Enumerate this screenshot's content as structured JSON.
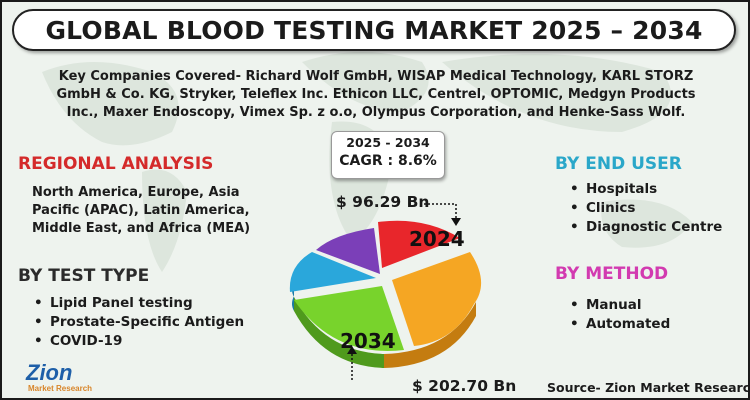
{
  "title": "GLOBAL BLOOD TESTING MARKET 2025 – 2034",
  "companies": "Key Companies Covered- Richard Wolf GmbH, WISAP Medical Technology, KARL STORZ GmbH & Co. KG, Stryker, Teleflex Inc. Ethicon LLC, Centrel, OPTOMIC, Medgyn Products Inc., Maxer Endoscopy, Vimex Sp. z o.o, Olympus Corporation, and Henke-Sass Wolf.",
  "forecast": {
    "period": "2025 - 2034",
    "cagr": "CAGR : 8.6%"
  },
  "regional": {
    "heading": "REGIONAL ANALYSIS",
    "text": "North America, Europe, Asia Pacific (APAC), Latin America, Middle East, and Africa (MEA)"
  },
  "test_type": {
    "heading": "BY TEST TYPE",
    "items": [
      "Lipid Panel testing",
      "Prostate-Specific Antigen",
      "COVID-19"
    ]
  },
  "end_user": {
    "heading": "BY END USER",
    "items": [
      "Hospitals",
      "Clinics",
      "Diagnostic Centre"
    ]
  },
  "method": {
    "heading": "BY METHOD",
    "items": [
      "Manual",
      "Automated"
    ]
  },
  "pie": {
    "label_2024": "2024",
    "label_2034": "2034",
    "value_2024": "$ 96.29 Bn",
    "value_2034": "$ 202.70 Bn",
    "colors": [
      "#e8262b",
      "#f5a623",
      "#78d32c",
      "#2aa7db",
      "#7b3fb8"
    ]
  },
  "source": "Source- Zion Market Research",
  "logo": {
    "brand": "Zion",
    "sub": "Market Research"
  },
  "colors": {
    "regional_heading": "#d42a2a",
    "end_user_heading": "#2aa7c9",
    "method_heading": "#d23ab0",
    "background": "#eef3ee"
  }
}
